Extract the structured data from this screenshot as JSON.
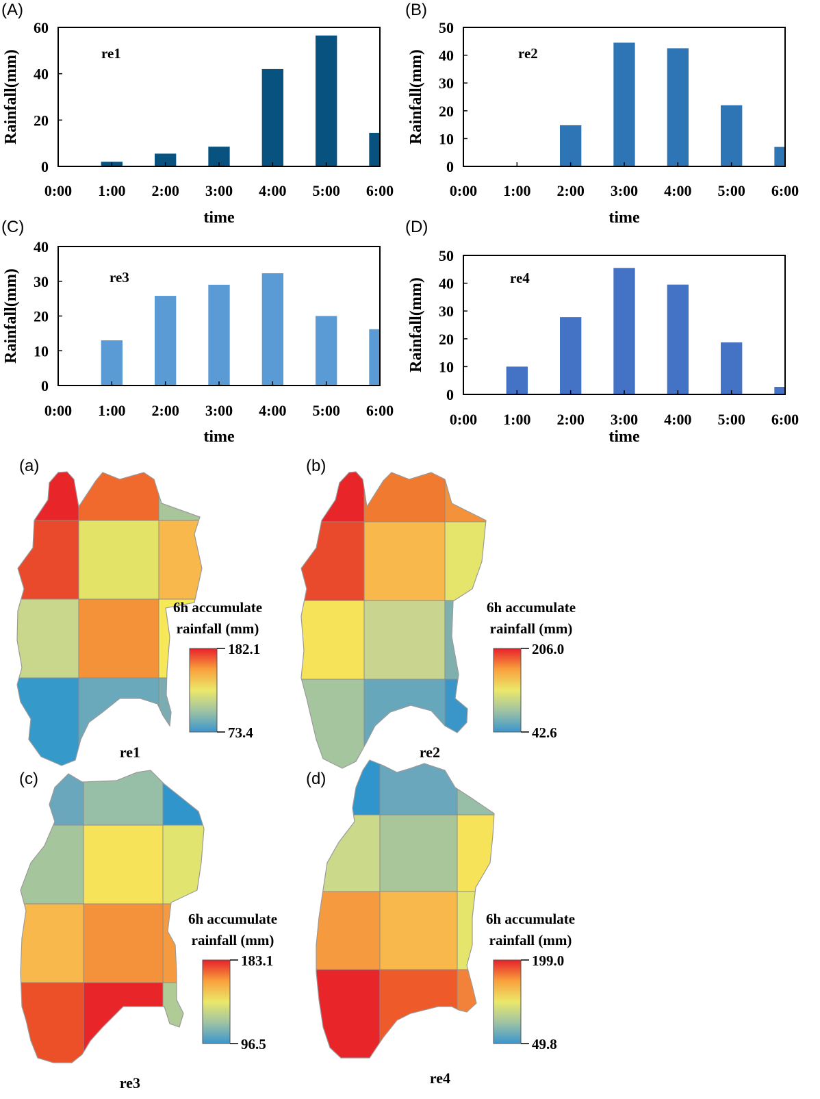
{
  "chart_data": [
    {
      "panel": "(A)",
      "type": "bar",
      "tag": "re1",
      "categories": [
        "0:00",
        "1:00",
        "2:00",
        "3:00",
        "4:00",
        "5:00",
        "6:00"
      ],
      "values": [
        0,
        2,
        5.5,
        8.5,
        42,
        56.5,
        14.5
      ],
      "ylim": [
        0,
        60
      ],
      "yticks": [
        0,
        20,
        40,
        60
      ],
      "xlabel": "time",
      "ylabel": "Rainfall(mm)",
      "color": "#07527f"
    },
    {
      "panel": "(B)",
      "type": "bar",
      "tag": "re2",
      "categories": [
        "0:00",
        "1:00",
        "2:00",
        "3:00",
        "4:00",
        "5:00",
        "6:00"
      ],
      "values": [
        0,
        0,
        14.8,
        44.5,
        42.5,
        22,
        7
      ],
      "ylim": [
        0,
        50
      ],
      "yticks": [
        0,
        10,
        20,
        30,
        40,
        50
      ],
      "xlabel": "time",
      "ylabel": "Rainfall(mm)",
      "color": "#2e75b6"
    },
    {
      "panel": "(C)",
      "type": "bar",
      "tag": "re3",
      "categories": [
        "0:00",
        "1:00",
        "2:00",
        "3:00",
        "4:00",
        "5:00",
        "6:00"
      ],
      "values": [
        0,
        13,
        25.8,
        29,
        32.3,
        20,
        16.2
      ],
      "ylim": [
        0,
        40
      ],
      "yticks": [
        0,
        10,
        20,
        30,
        40
      ],
      "xlabel": "time",
      "ylabel": "Rainfall(mm)",
      "color": "#5b9bd5"
    },
    {
      "panel": "(D)",
      "type": "bar",
      "tag": "re4",
      "categories": [
        "0:00",
        "1:00",
        "2:00",
        "3:00",
        "4:00",
        "5:00",
        "6:00"
      ],
      "values": [
        0,
        10,
        27.8,
        45.5,
        39.5,
        18.7,
        2.7
      ],
      "ylim": [
        0,
        50
      ],
      "yticks": [
        0,
        10,
        20,
        30,
        40,
        50
      ],
      "xlabel": "time",
      "ylabel": "Rainfall(mm)",
      "color": "#4472c4"
    },
    {
      "panel": "(a)",
      "type": "heatmap",
      "tag": "re1",
      "legend_title": [
        "6h accumulate",
        "rainfall (mm)"
      ],
      "legend_max": "182.1",
      "legend_min": "73.4",
      "cells": [
        [
          "#e8262a",
          "#ef6a2c",
          "#a9c59a"
        ],
        [
          "#ea4a2c",
          "#e3e467",
          "#f8b84b"
        ],
        [
          "#c8d78c",
          "#f4923a",
          "#f7e85a"
        ],
        [
          "#3599c9",
          "#6aa8bb",
          "#7aacb2"
        ]
      ]
    },
    {
      "panel": "(b)",
      "type": "heatmap",
      "tag": "re2",
      "legend_title": [
        "6h accumulate",
        "rainfall (mm)"
      ],
      "legend_max": "206.0",
      "legend_min": "42.6",
      "cells": [
        [
          "#e8262a",
          "#ef7a30",
          "#f3923b"
        ],
        [
          "#ea4a2c",
          "#f8b84b",
          "#e5e56b"
        ],
        [
          "#f7e35a",
          "#c9d58f",
          "#80b0ad"
        ],
        [
          "#a4c59d",
          "#67a7bb",
          "#3a96c8"
        ]
      ]
    },
    {
      "panel": "(c)",
      "type": "heatmap",
      "tag": "re3",
      "legend_title": [
        "6h accumulate",
        "rainfall (mm)"
      ],
      "legend_max": "183.1",
      "legend_min": "96.5",
      "cells": [
        [
          "#6aa6bc",
          "#97bea6",
          "#2f95cb"
        ],
        [
          "#a5c59c",
          "#f7e35a",
          "#e1e56f"
        ],
        [
          "#f8b84b",
          "#f3923b",
          "#f59a3e"
        ],
        [
          "#ec5028",
          "#e8262a",
          "#b0cb96"
        ]
      ]
    },
    {
      "panel": "(d)",
      "type": "heatmap",
      "tag": "re4",
      "legend_title": [
        "6h accumulate",
        "rainfall (mm)"
      ],
      "legend_max": "199.0",
      "legend_min": "49.8",
      "cells": [
        [
          "#2f95cb",
          "#6aa6bc",
          "#97bea6"
        ],
        [
          "#cbd98b",
          "#a9c59a",
          "#f7e35a"
        ],
        [
          "#f59a3e",
          "#f8b84b",
          "#e5e56b"
        ],
        [
          "#e8262a",
          "#ee5a2a",
          "#f2823a"
        ]
      ]
    }
  ]
}
